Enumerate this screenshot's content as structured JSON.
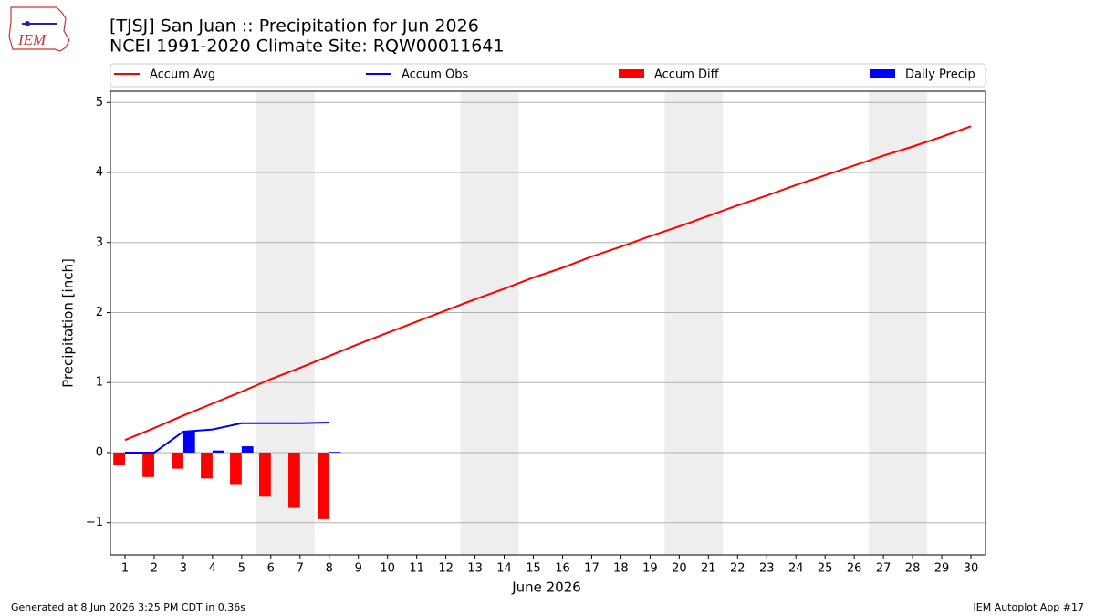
{
  "logo_text": "IEM",
  "footer_left": "Generated at 8 Jun 2026 3:25 PM CDT in 0.36s",
  "footer_right": "IEM Autoplot App #17",
  "chart_data": {
    "type": "line_bar",
    "title": "[TJSJ] San Juan :: Precipitation for Jun 2026",
    "subtitle": "NCEI 1991-2020 Climate Site: RQW00011641",
    "xlabel": "June 2026",
    "ylabel": "Precipitation [inch]",
    "x": [
      1,
      2,
      3,
      4,
      5,
      6,
      7,
      8,
      9,
      10,
      11,
      12,
      13,
      14,
      15,
      16,
      17,
      18,
      19,
      20,
      21,
      22,
      23,
      24,
      25,
      26,
      27,
      28,
      29,
      30
    ],
    "xlim": [
      0.5,
      30.5
    ],
    "xticks": [
      1,
      2,
      3,
      4,
      5,
      6,
      7,
      8,
      9,
      10,
      11,
      12,
      13,
      14,
      15,
      16,
      17,
      18,
      19,
      20,
      21,
      22,
      23,
      24,
      25,
      26,
      27,
      28,
      29,
      30
    ],
    "ylim": [
      -1.46,
      5.16
    ],
    "yticks": [
      {
        "value": -1,
        "label": "−1"
      },
      0,
      1,
      2,
      3,
      4,
      5
    ],
    "grid": true,
    "shaded_ranges": [
      [
        5.5,
        7.5
      ],
      [
        12.5,
        14.5
      ],
      [
        19.5,
        21.5
      ],
      [
        26.5,
        28.5
      ]
    ],
    "shade_color": "#eeeeee",
    "series": [
      {
        "name": "Accum Avg",
        "type": "line",
        "color": "#ff0000",
        "values": [
          0.18,
          0.35,
          0.53,
          0.7,
          0.87,
          1.05,
          1.21,
          1.38,
          1.55,
          1.71,
          1.87,
          2.03,
          2.19,
          2.34,
          2.5,
          2.64,
          2.8,
          2.94,
          3.09,
          3.23,
          3.38,
          3.53,
          3.67,
          3.82,
          3.96,
          4.1,
          4.24,
          4.37,
          4.51,
          4.66
        ]
      },
      {
        "name": "Accum Obs",
        "type": "line",
        "color": "#0000ff",
        "values": [
          0,
          0,
          0.3,
          0.33,
          0.42,
          0.42,
          0.42,
          0.43,
          null,
          null,
          null,
          null,
          null,
          null,
          null,
          null,
          null,
          null,
          null,
          null,
          null,
          null,
          null,
          null,
          null,
          null,
          null,
          null,
          null,
          null
        ]
      },
      {
        "name": "Accum Diff",
        "type": "bar",
        "color": "#ff0000",
        "values": [
          -0.18,
          -0.35,
          -0.23,
          -0.37,
          -0.45,
          -0.63,
          -0.79,
          -0.95,
          null,
          null,
          null,
          null,
          null,
          null,
          null,
          null,
          null,
          null,
          null,
          null,
          null,
          null,
          null,
          null,
          null,
          null,
          null,
          null,
          null,
          null
        ]
      },
      {
        "name": "Daily Precip",
        "type": "bar",
        "color": "#0000ff",
        "values": [
          0,
          0,
          0.3,
          0.03,
          0.09,
          0,
          0,
          0.01,
          null,
          null,
          null,
          null,
          null,
          null,
          null,
          null,
          null,
          null,
          null,
          null,
          null,
          null,
          null,
          null,
          null,
          null,
          null,
          null,
          null,
          null
        ]
      }
    ]
  }
}
